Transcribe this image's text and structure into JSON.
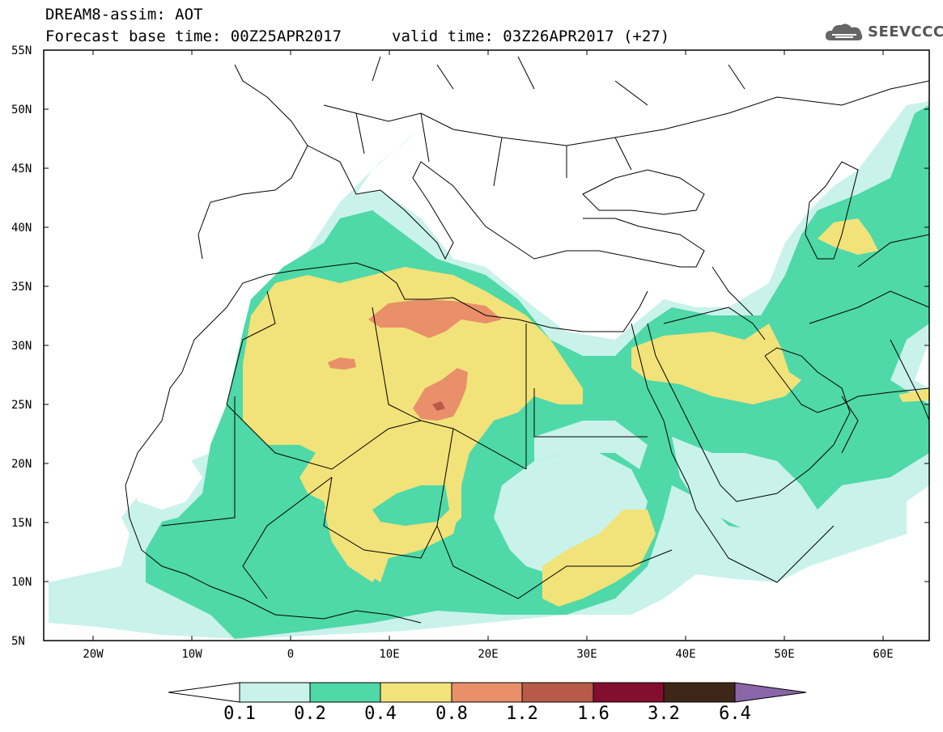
{
  "header": {
    "title": "DREAM8-assim: AOT",
    "base_time": "Forecast base time: 00Z25APR2017",
    "valid_time": "valid time: 03Z26APR2017 (+27)",
    "logo_text": "SEEVCCC",
    "logo_icon": "cloud-icon"
  },
  "map": {
    "lon_range": [
      -25,
      65
    ],
    "lat_range": [
      5,
      55
    ],
    "lat_ticks": [
      "55N",
      "50N",
      "45N",
      "40N",
      "35N",
      "30N",
      "25N",
      "20N",
      "15N",
      "10N",
      "5N"
    ],
    "lon_ticks": [
      "20W",
      "10W",
      "0",
      "10E",
      "20E",
      "30E",
      "40E",
      "50E",
      "60E"
    ]
  },
  "colorbar": {
    "labels": [
      "0.1",
      "0.2",
      "0.4",
      "0.8",
      "1.2",
      "1.6",
      "3.2",
      "6.4"
    ],
    "colors": [
      "#ffffff",
      "#c8f2ea",
      "#4fd8a8",
      "#f2e27a",
      "#e98f6a",
      "#b75a48",
      "#840e2e",
      "#3e2717",
      "#8a66a8"
    ]
  },
  "aot_colors": {
    "c02": "#c8f2ea",
    "c04": "#4fd8a8",
    "c08": "#f2e27a",
    "c12": "#e98f6a",
    "c16": "#b75a48"
  }
}
